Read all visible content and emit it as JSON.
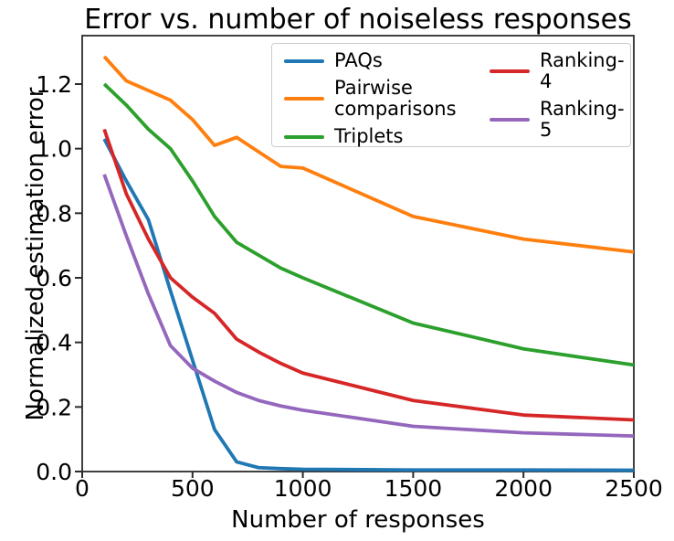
{
  "chart_data": {
    "type": "line",
    "title": "Error vs. number of noiseless responses",
    "xlabel": "Number of responses",
    "ylabel": "Normalized estimation error",
    "xlim": [
      0,
      2500
    ],
    "ylim": [
      0,
      1.35
    ],
    "xticks": [
      0,
      500,
      1000,
      1500,
      2000,
      2500
    ],
    "ytick_labels": [
      "0.0",
      "0.2",
      "0.4",
      "0.6",
      "0.8",
      "1.0",
      "1.2"
    ],
    "grid": false,
    "legend_loc": "upper center, inside axes, 2 columns",
    "x": [
      100,
      200,
      300,
      400,
      500,
      600,
      700,
      800,
      900,
      1000,
      1500,
      2000,
      2500
    ],
    "series": [
      {
        "name": "PAQs",
        "color": "#1f77b4",
        "y": [
          1.03,
          0.9,
          0.78,
          0.56,
          0.345,
          0.13,
          0.03,
          0.012,
          0.009,
          0.007,
          0.005,
          0.005,
          0.004
        ]
      },
      {
        "name": "Pairwise comparisons",
        "color": "#ff7f0e",
        "y": [
          1.285,
          1.21,
          1.18,
          1.15,
          1.09,
          1.01,
          1.035,
          0.99,
          0.945,
          0.94,
          0.79,
          0.72,
          0.68
        ]
      },
      {
        "name": "Triplets",
        "color": "#2ca02c",
        "y": [
          1.2,
          1.135,
          1.06,
          1.0,
          0.9,
          0.79,
          0.71,
          0.67,
          0.63,
          0.6,
          0.46,
          0.38,
          0.33
        ]
      },
      {
        "name": "Ranking-4",
        "color": "#d62728",
        "y": [
          1.06,
          0.86,
          0.72,
          0.6,
          0.54,
          0.49,
          0.41,
          0.37,
          0.335,
          0.305,
          0.22,
          0.175,
          0.16
        ]
      },
      {
        "name": "Ranking-5",
        "color": "#9467bd",
        "y": [
          0.92,
          0.73,
          0.55,
          0.39,
          0.32,
          0.28,
          0.245,
          0.22,
          0.203,
          0.19,
          0.14,
          0.12,
          0.11
        ]
      }
    ]
  }
}
